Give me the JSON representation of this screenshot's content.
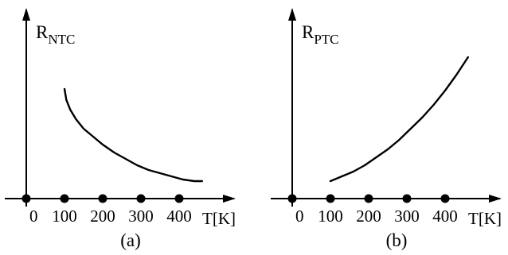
{
  "chart_data": [
    {
      "type": "line",
      "panel_label": "(a)",
      "y_axis": {
        "symbol": "R",
        "subscript": "NTC"
      },
      "x_axis": {
        "label": "T[K]",
        "ticks": [
          "0",
          "100",
          "200",
          "300",
          "400"
        ]
      },
      "xlim": [
        0,
        540
      ],
      "ylim": [
        0,
        1
      ],
      "series": [
        {
          "x": [
            100,
            105,
            115,
            130,
            150,
            175,
            200,
            230,
            260,
            290,
            320,
            350,
            380,
            410,
            440,
            460
          ],
          "y": [
            0.69,
            0.62,
            0.56,
            0.5,
            0.44,
            0.39,
            0.34,
            0.29,
            0.25,
            0.21,
            0.18,
            0.16,
            0.14,
            0.12,
            0.11,
            0.11
          ]
        }
      ]
    },
    {
      "type": "line",
      "panel_label": "(b)",
      "y_axis": {
        "symbol": "R",
        "subscript": "PTC"
      },
      "x_axis": {
        "label": "T[K]",
        "ticks": [
          "0",
          "100",
          "200",
          "300",
          "400"
        ]
      },
      "xlim": [
        0,
        540
      ],
      "ylim": [
        0,
        1
      ],
      "series": [
        {
          "x": [
            100,
            130,
            160,
            190,
            220,
            250,
            280,
            310,
            340,
            370,
            400,
            430,
            460
          ],
          "y": [
            0.11,
            0.14,
            0.17,
            0.21,
            0.26,
            0.31,
            0.37,
            0.44,
            0.51,
            0.59,
            0.68,
            0.78,
            0.89
          ]
        }
      ]
    }
  ]
}
